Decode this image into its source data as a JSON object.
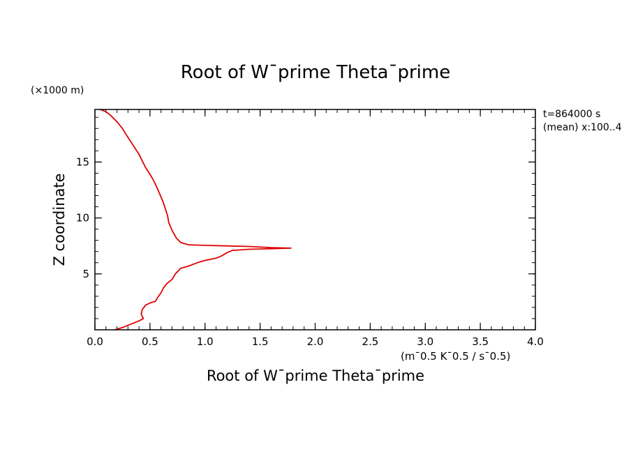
{
  "chart_data": {
    "type": "line",
    "title": "Root of W¯prime Theta¯prime",
    "xlabel": "Root of W¯prime Theta¯prime",
    "xunits": "(m¯0.5 K¯0.5 / s¯0.5)",
    "ylabel": "Z coordinate",
    "yunits": "(×1000 m)",
    "xlim": [
      0.0,
      4.0
    ],
    "ylim": [
      0.0,
      19.7
    ],
    "x_ticks": [
      "0.0",
      "0.5",
      "1.0",
      "1.5",
      "2.0",
      "2.5",
      "3.0",
      "3.5",
      "4.0"
    ],
    "y_ticks": [
      "5",
      "10",
      "15"
    ],
    "annotations": [
      "t=864000 s",
      "(mean) x:100..4"
    ],
    "series": [
      {
        "color": "#e00000",
        "points": [
          [
            0.05,
            19.7
          ],
          [
            0.1,
            19.5
          ],
          [
            0.15,
            19.1
          ],
          [
            0.2,
            18.6
          ],
          [
            0.25,
            18.0
          ],
          [
            0.28,
            17.5
          ],
          [
            0.32,
            16.9
          ],
          [
            0.36,
            16.3
          ],
          [
            0.4,
            15.7
          ],
          [
            0.43,
            15.1
          ],
          [
            0.46,
            14.5
          ],
          [
            0.5,
            13.9
          ],
          [
            0.53,
            13.4
          ],
          [
            0.56,
            12.8
          ],
          [
            0.59,
            12.1
          ],
          [
            0.62,
            11.4
          ],
          [
            0.64,
            10.8
          ],
          [
            0.66,
            10.2
          ],
          [
            0.67,
            9.6
          ],
          [
            0.7,
            8.9
          ],
          [
            0.74,
            8.2
          ],
          [
            0.78,
            7.8
          ],
          [
            0.85,
            7.6
          ],
          [
            1.0,
            7.55
          ],
          [
            1.2,
            7.5
          ],
          [
            1.4,
            7.45
          ],
          [
            1.6,
            7.35
          ],
          [
            1.78,
            7.3
          ],
          [
            1.6,
            7.25
          ],
          [
            1.4,
            7.2
          ],
          [
            1.25,
            7.1
          ],
          [
            1.2,
            6.9
          ],
          [
            1.15,
            6.6
          ],
          [
            1.1,
            6.4
          ],
          [
            1.0,
            6.2
          ],
          [
            0.93,
            6.0
          ],
          [
            0.85,
            5.7
          ],
          [
            0.78,
            5.5
          ],
          [
            0.73,
            5.0
          ],
          [
            0.7,
            4.5
          ],
          [
            0.65,
            4.1
          ],
          [
            0.62,
            3.7
          ],
          [
            0.6,
            3.3
          ],
          [
            0.57,
            2.9
          ],
          [
            0.55,
            2.55
          ],
          [
            0.5,
            2.4
          ],
          [
            0.46,
            2.2
          ],
          [
            0.43,
            1.8
          ],
          [
            0.42,
            1.4
          ],
          [
            0.44,
            1.0
          ],
          [
            0.4,
            0.8
          ],
          [
            0.35,
            0.6
          ],
          [
            0.3,
            0.4
          ],
          [
            0.25,
            0.2
          ],
          [
            0.18,
            0.0
          ]
        ]
      }
    ]
  }
}
